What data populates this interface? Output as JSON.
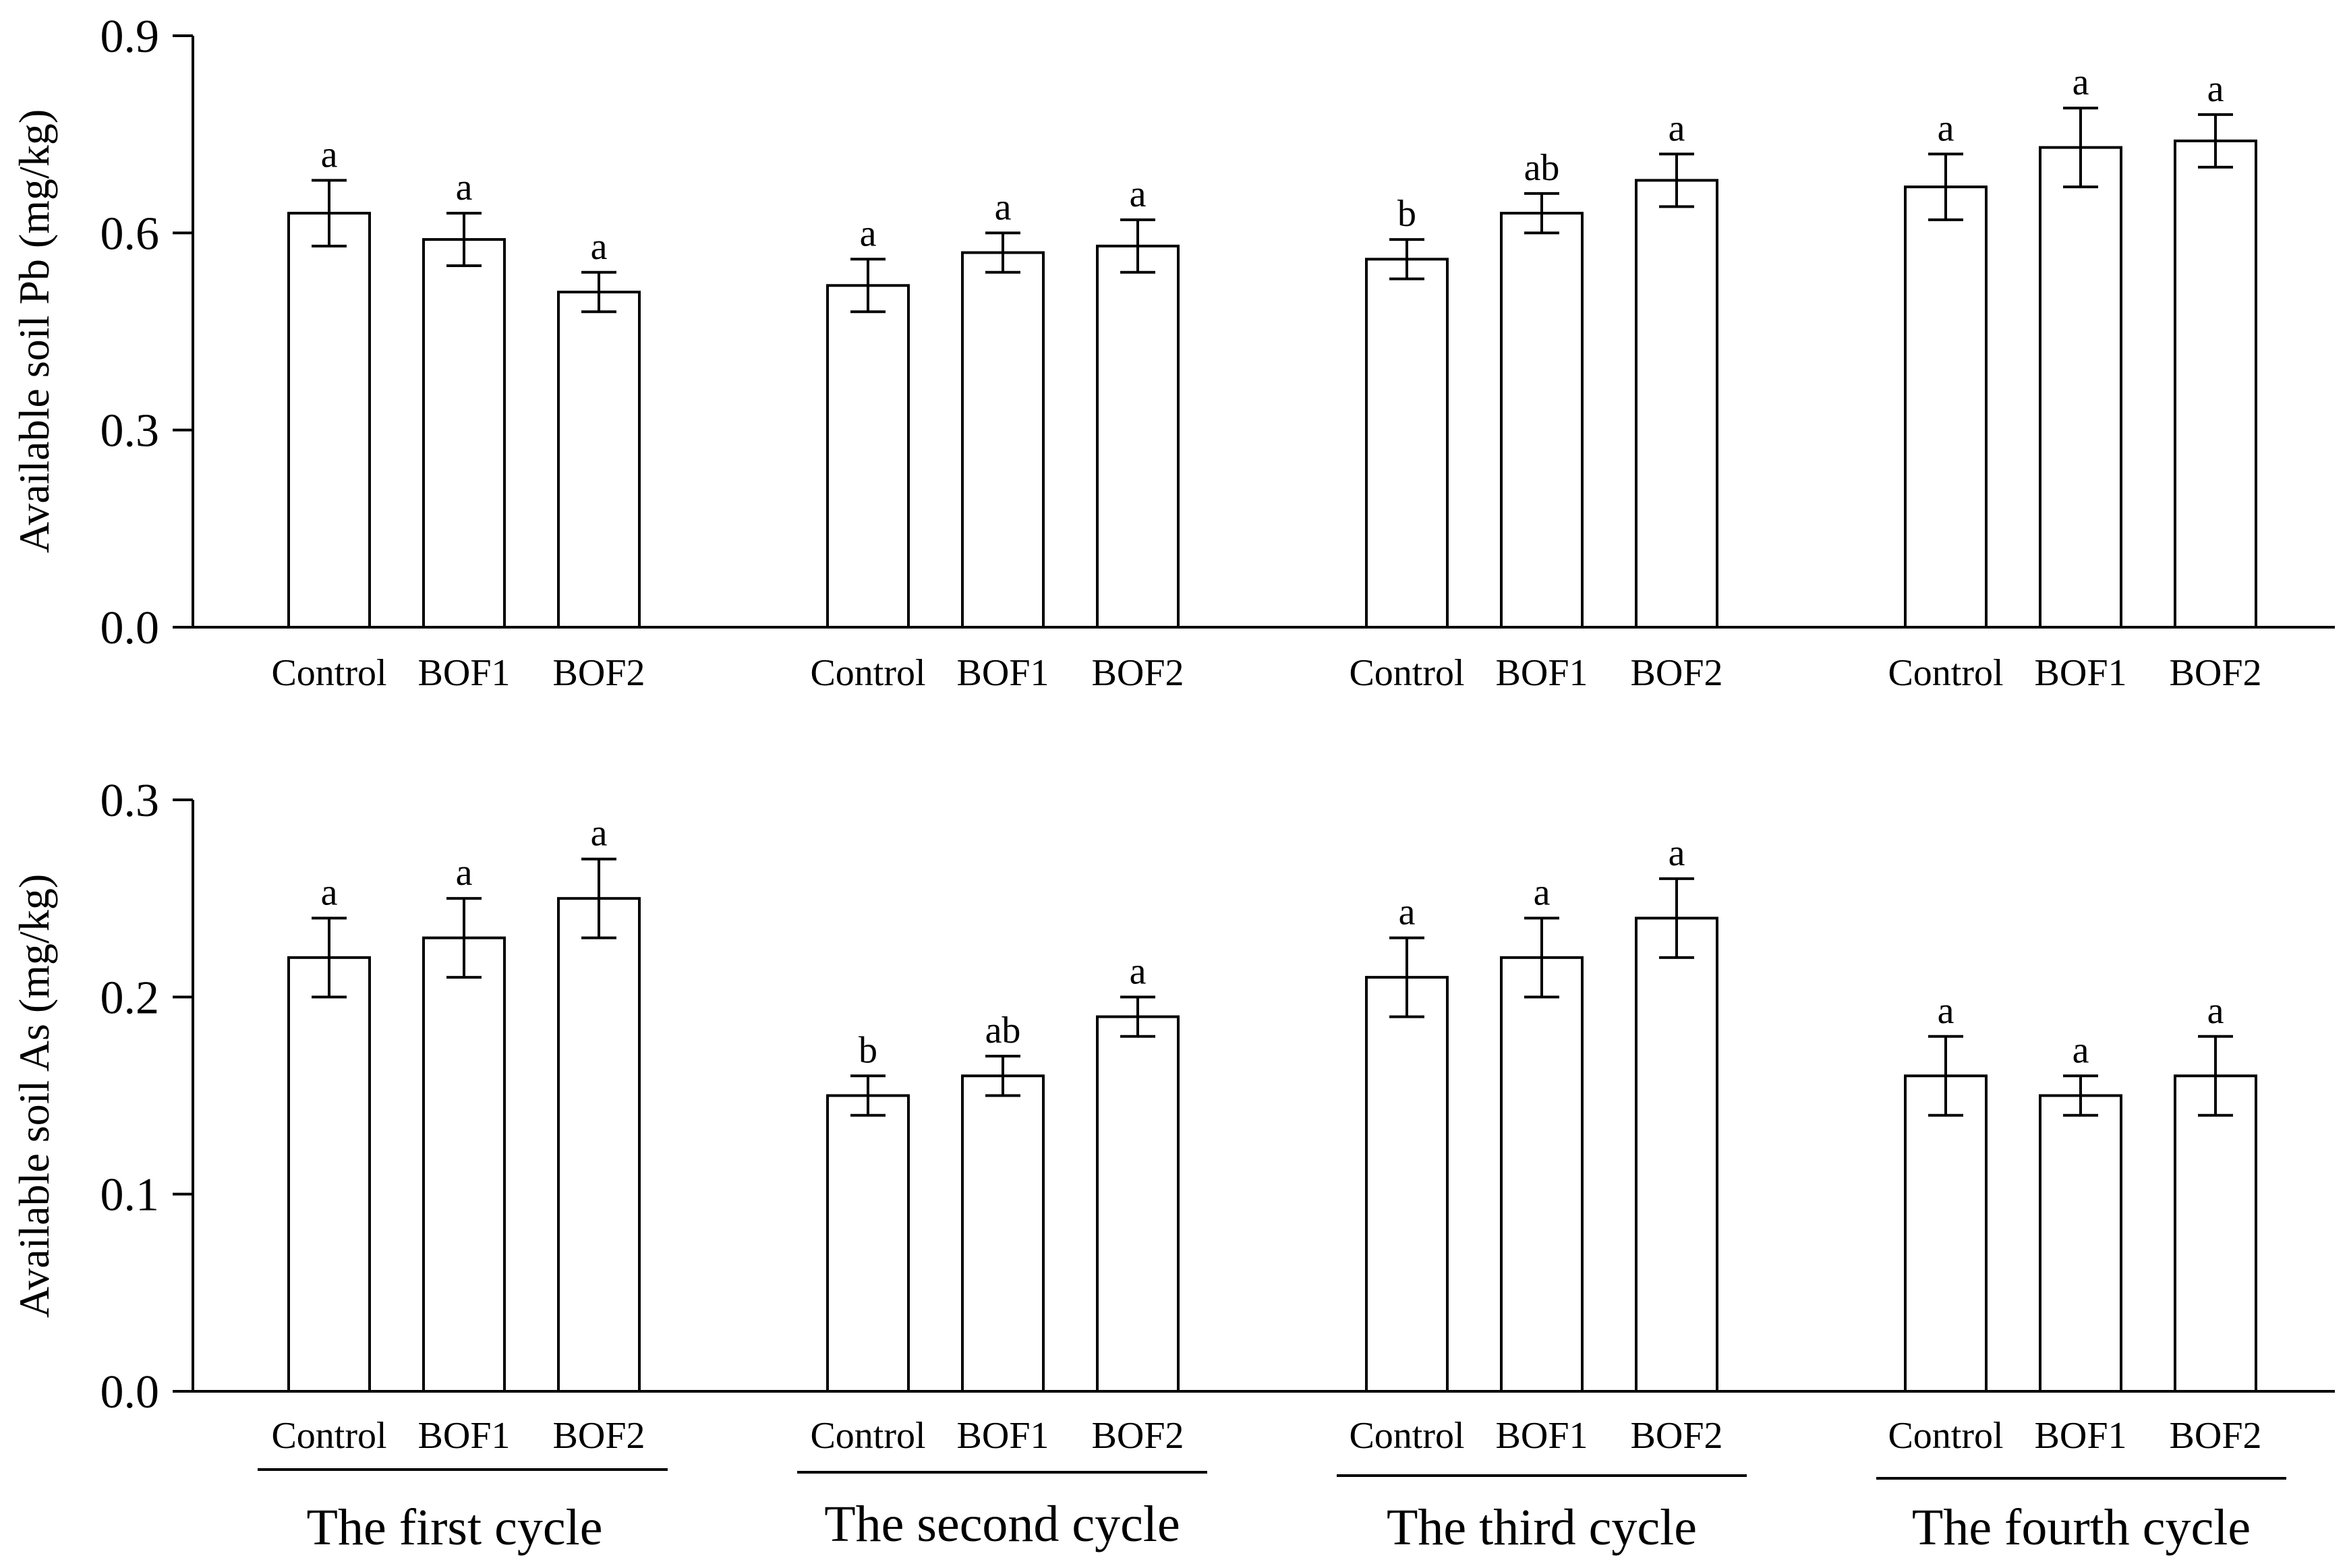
{
  "chart_data": [
    {
      "type": "bar",
      "ylabel": "Available soil Pb (mg/kg)",
      "xlabel": "",
      "ylim": [
        0,
        0.9
      ],
      "yticks": [
        "0.0",
        "0.3",
        "0.6",
        "0.9"
      ],
      "groups": [
        {
          "cycle": "The first cycle",
          "categories": [
            "Control",
            "BOF1",
            "BOF2"
          ],
          "values": [
            0.63,
            0.59,
            0.51
          ],
          "errors": [
            0.05,
            0.04,
            0.03
          ],
          "significance": [
            "a",
            "a",
            "a"
          ]
        },
        {
          "cycle": "The second cycle",
          "categories": [
            "Control",
            "BOF1",
            "BOF2"
          ],
          "values": [
            0.52,
            0.57,
            0.58
          ],
          "errors": [
            0.04,
            0.03,
            0.04
          ],
          "significance": [
            "a",
            "a",
            "a"
          ]
        },
        {
          "cycle": "The third cycle",
          "categories": [
            "Control",
            "BOF1",
            "BOF2"
          ],
          "values": [
            0.56,
            0.63,
            0.68
          ],
          "errors": [
            0.03,
            0.03,
            0.04
          ],
          "significance": [
            "b",
            "ab",
            "a"
          ]
        },
        {
          "cycle": "The fourth cycle",
          "categories": [
            "Control",
            "BOF1",
            "BOF2"
          ],
          "values": [
            0.67,
            0.73,
            0.74
          ],
          "errors": [
            0.05,
            0.06,
            0.04
          ],
          "significance": [
            "a",
            "a",
            "a"
          ]
        }
      ]
    },
    {
      "type": "bar",
      "ylabel": "Available soil As (mg/kg)",
      "xlabel": "",
      "ylim": [
        0,
        0.3
      ],
      "yticks": [
        "0.0",
        "0.1",
        "0.2",
        "0.3"
      ],
      "groups": [
        {
          "cycle": "The first cycle",
          "categories": [
            "Control",
            "BOF1",
            "BOF2"
          ],
          "values": [
            0.22,
            0.23,
            0.25
          ],
          "errors": [
            0.02,
            0.02,
            0.02
          ],
          "significance": [
            "a",
            "a",
            "a"
          ]
        },
        {
          "cycle": "The second cycle",
          "categories": [
            "Control",
            "BOF1",
            "BOF2"
          ],
          "values": [
            0.15,
            0.16,
            0.19
          ],
          "errors": [
            0.01,
            0.01,
            0.01
          ],
          "significance": [
            "b",
            "ab",
            "a"
          ]
        },
        {
          "cycle": "The third cycle",
          "categories": [
            "Control",
            "BOF1",
            "BOF2"
          ],
          "values": [
            0.21,
            0.22,
            0.24
          ],
          "errors": [
            0.02,
            0.02,
            0.02
          ],
          "significance": [
            "a",
            "a",
            "a"
          ]
        },
        {
          "cycle": "The fourth cycle",
          "categories": [
            "Control",
            "BOF1",
            "BOF2"
          ],
          "values": [
            0.16,
            0.15,
            0.16
          ],
          "errors": [
            0.02,
            0.01,
            0.02
          ],
          "significance": [
            "a",
            "a",
            "a"
          ]
        }
      ]
    }
  ],
  "cycle_labels": [
    "The first cycle",
    "The second cycle",
    "The third cycle",
    "The fourth cycle"
  ]
}
